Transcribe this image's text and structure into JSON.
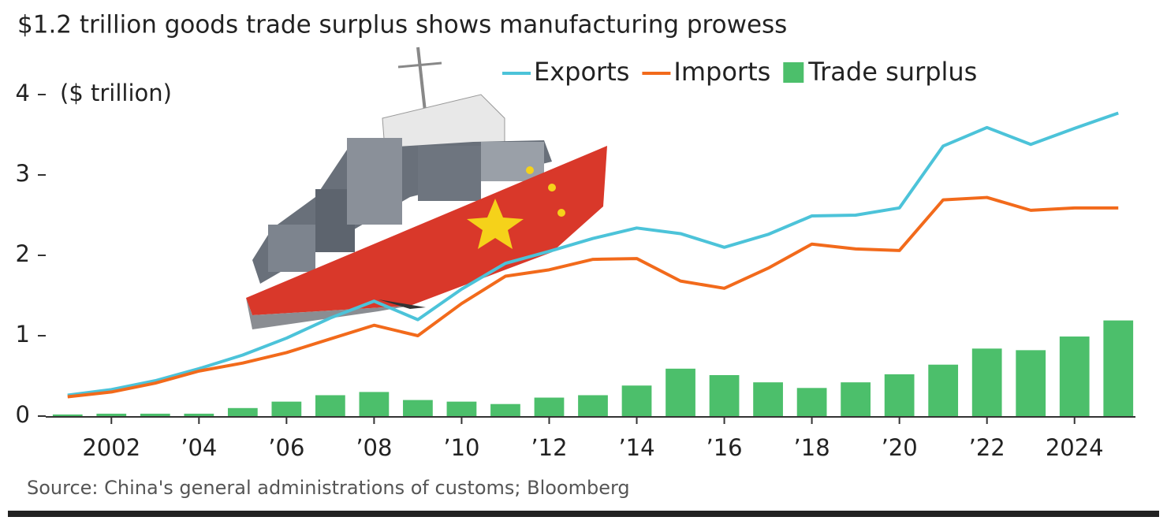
{
  "chart_data": {
    "type": "combo",
    "title": "$1.2 trillion goods trade surplus shows manufacturing prowess",
    "y_label": "($ trillion)",
    "source": "Source: China's general administrations of customs; Bloomberg",
    "x": [
      2001,
      2002,
      2003,
      2004,
      2005,
      2006,
      2007,
      2008,
      2009,
      2010,
      2011,
      2012,
      2013,
      2014,
      2015,
      2016,
      2017,
      2018,
      2019,
      2020,
      2021,
      2022,
      2023,
      2024,
      2025
    ],
    "series": [
      {
        "name": "Exports",
        "kind": "line",
        "color": "#4cc3d9",
        "values": [
          0.26,
          0.33,
          0.44,
          0.59,
          0.76,
          0.97,
          1.22,
          1.43,
          1.2,
          1.58,
          1.9,
          2.05,
          2.21,
          2.34,
          2.27,
          2.1,
          2.26,
          2.49,
          2.5,
          2.59,
          3.36,
          3.59,
          3.38,
          3.58,
          3.77
        ]
      },
      {
        "name": "Imports",
        "kind": "line",
        "color": "#f26a1b",
        "values": [
          0.24,
          0.3,
          0.41,
          0.56,
          0.66,
          0.79,
          0.96,
          1.13,
          1.0,
          1.4,
          1.74,
          1.82,
          1.95,
          1.96,
          1.68,
          1.59,
          1.84,
          2.14,
          2.08,
          2.06,
          2.69,
          2.72,
          2.56,
          2.59,
          2.59
        ]
      },
      {
        "name": "Trade surplus",
        "kind": "bar",
        "color": "#4cbf6b",
        "values": [
          0.02,
          0.03,
          0.03,
          0.03,
          0.1,
          0.18,
          0.26,
          0.3,
          0.2,
          0.18,
          0.15,
          0.23,
          0.26,
          0.38,
          0.59,
          0.51,
          0.42,
          0.35,
          0.42,
          0.52,
          0.64,
          0.84,
          0.82,
          0.99,
          1.19
        ]
      }
    ],
    "xlim": [
      2000.5,
      2025.5
    ],
    "xticks": [
      2002,
      {
        "value": 2004,
        "label": "’04"
      },
      {
        "value": 2006,
        "label": "’06"
      },
      {
        "value": 2008,
        "label": "’08"
      },
      {
        "value": 2010,
        "label": "’10"
      },
      {
        "value": 2012,
        "label": "’12"
      },
      {
        "value": 2014,
        "label": "’14"
      },
      {
        "value": 2016,
        "label": "’16"
      },
      {
        "value": 2018,
        "label": "’18"
      },
      {
        "value": 2020,
        "label": "’20"
      },
      {
        "value": 2022,
        "label": "’22"
      },
      2024
    ],
    "ylim": [
      0,
      4
    ],
    "yticks": [
      0,
      1,
      2,
      3,
      4
    ],
    "grid": false
  }
}
